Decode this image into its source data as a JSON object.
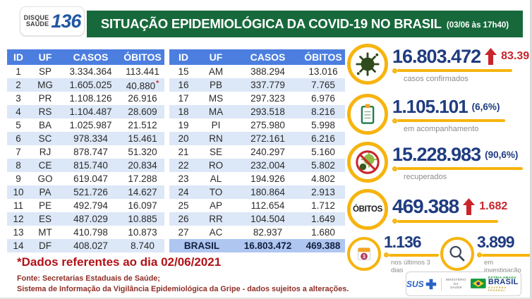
{
  "header": {
    "logo": {
      "word_top": "DISQUE",
      "word_bottom": "SAÚDE",
      "number": "136"
    },
    "title": "SITUAÇÃO EPIDEMIOLÓGICA DA COVID-19 NO BRASIL",
    "timestamp": "(03/06 às 17h40)"
  },
  "chart_data": {
    "type": "table",
    "title": "SITUAÇÃO EPIDEMIOLÓGICA DA COVID-19 NO BRASIL",
    "as_of": "03/06 às 17h40",
    "columns": [
      "ID",
      "UF",
      "CASOS",
      "ÓBITOS"
    ],
    "rows": [
      {
        "id": 1,
        "uf": "SP",
        "casos": "3.334.364",
        "obitos": "113.441"
      },
      {
        "id": 2,
        "uf": "MG",
        "casos": "1.605.025",
        "obitos": "40.880",
        "flag": "*"
      },
      {
        "id": 3,
        "uf": "PR",
        "casos": "1.108.126",
        "obitos": "26.916"
      },
      {
        "id": 4,
        "uf": "RS",
        "casos": "1.104.487",
        "obitos": "28.609"
      },
      {
        "id": 5,
        "uf": "BA",
        "casos": "1.025.987",
        "obitos": "21.512"
      },
      {
        "id": 6,
        "uf": "SC",
        "casos": "978.334",
        "obitos": "15.461"
      },
      {
        "id": 7,
        "uf": "RJ",
        "casos": "878.747",
        "obitos": "51.320"
      },
      {
        "id": 8,
        "uf": "CE",
        "casos": "815.740",
        "obitos": "20.834"
      },
      {
        "id": 9,
        "uf": "GO",
        "casos": "619.047",
        "obitos": "17.288"
      },
      {
        "id": 10,
        "uf": "PA",
        "casos": "521.726",
        "obitos": "14.627"
      },
      {
        "id": 11,
        "uf": "PE",
        "casos": "492.794",
        "obitos": "16.097"
      },
      {
        "id": 12,
        "uf": "ES",
        "casos": "487.029",
        "obitos": "10.885"
      },
      {
        "id": 13,
        "uf": "MT",
        "casos": "410.798",
        "obitos": "10.873"
      },
      {
        "id": 14,
        "uf": "DF",
        "casos": "408.027",
        "obitos": "8.740"
      },
      {
        "id": 15,
        "uf": "AM",
        "casos": "388.294",
        "obitos": "13.016"
      },
      {
        "id": 16,
        "uf": "PB",
        "casos": "337.779",
        "obitos": "7.765"
      },
      {
        "id": 17,
        "uf": "MS",
        "casos": "297.323",
        "obitos": "6.976"
      },
      {
        "id": 18,
        "uf": "MA",
        "casos": "293.518",
        "obitos": "8.216"
      },
      {
        "id": 19,
        "uf": "PI",
        "casos": "275.980",
        "obitos": "5.998"
      },
      {
        "id": 20,
        "uf": "RN",
        "casos": "272.161",
        "obitos": "6.216"
      },
      {
        "id": 21,
        "uf": "SE",
        "casos": "240.297",
        "obitos": "5.160"
      },
      {
        "id": 22,
        "uf": "RO",
        "casos": "232.004",
        "obitos": "5.802"
      },
      {
        "id": 23,
        "uf": "AL",
        "casos": "194.926",
        "obitos": "4.802"
      },
      {
        "id": 24,
        "uf": "TO",
        "casos": "180.864",
        "obitos": "2.913"
      },
      {
        "id": 25,
        "uf": "AP",
        "casos": "112.654",
        "obitos": "1.712"
      },
      {
        "id": 26,
        "uf": "RR",
        "casos": "104.504",
        "obitos": "1.649"
      },
      {
        "id": 27,
        "uf": "AC",
        "casos": "82.937",
        "obitos": "1.680"
      }
    ],
    "total": {
      "label": "BRASIL",
      "casos": "16.803.472",
      "obitos": "469.388"
    }
  },
  "stats": {
    "confirmed": {
      "value": "16.803.472",
      "delta": "83.391",
      "label": "casos confirmados"
    },
    "monitoring": {
      "value": "1.105.101",
      "pct": "(6,6%)",
      "label": "em acompanhamento"
    },
    "recovered": {
      "value": "15.228.983",
      "pct": "(90,6%)",
      "label": "recuperados"
    },
    "deaths": {
      "circle_label": "ÓBITOS",
      "value": "469.388",
      "delta": "1.682"
    },
    "last_3_days": {
      "value": "1.136",
      "label": "nos últimos 3 dias",
      "calendar_number": "3"
    },
    "investigation": {
      "value": "3.899",
      "label": "em investigação"
    }
  },
  "footnote": {
    "highlight": "*Dados referentes ao dia 02/06/2021",
    "source_line1": "Fonte: Secretarias Estaduais de Saúde;",
    "source_line2": "Sistema de Informação da Vigilância Epidemiológica da Gripe - dados sujeitos a alterações."
  },
  "gov": {
    "sus": "SUS",
    "ministry_line1": "MINISTÉRIO DA",
    "ministry_line2": "SAÚDE",
    "brand_line1": "PÁTRIA AMADA",
    "brand_line2": "BRASIL",
    "brand_line3": "GOVERNO FEDERAL"
  },
  "colors": {
    "banner_green": "#17693B",
    "table_header_blue": "#4C7EE0",
    "row_stripe_blue": "#DCE7F7",
    "total_row_blue": "#AEC6F0",
    "number_navy": "#1F3C80",
    "alert_red": "#C9252B",
    "accent_yellow": "#F6B40E"
  }
}
